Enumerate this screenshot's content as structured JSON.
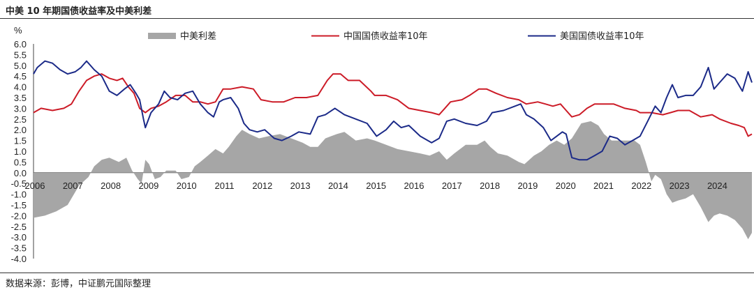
{
  "title": "中美 10 年期国债收益率及中美利差",
  "source": "数据来源：彭博，中证鹏元国际整理",
  "chart_data": {
    "type": "line",
    "yunit": "%",
    "ylim": [
      -4.0,
      6.0
    ],
    "ytick_step": 0.5,
    "yticks": [
      "6.0",
      "5.5",
      "5.0",
      "4.5",
      "4.0",
      "3.5",
      "3.0",
      "2.5",
      "2.0",
      "1.5",
      "1.0",
      "0.5",
      "0.0",
      "-0.5",
      "-1.0",
      "-1.5",
      "-2.0",
      "-2.5",
      "-3.0",
      "-3.5",
      "-4.0"
    ],
    "xlim": [
      2006.0,
      2024.95
    ],
    "xticks": [
      "2006",
      "2007",
      "2008",
      "2009",
      "2010",
      "2011",
      "2012",
      "2013",
      "2014",
      "2015",
      "2016",
      "2017",
      "2018",
      "2019",
      "2020",
      "2021",
      "2022",
      "2023",
      "2024"
    ],
    "legend_position": "top",
    "series": [
      {
        "name": "中美利差",
        "kind": "area",
        "color": "#a6a6a6",
        "points": [
          [
            2006.0,
            -2.1
          ],
          [
            2006.3,
            -2.0
          ],
          [
            2006.6,
            -1.8
          ],
          [
            2006.9,
            -1.5
          ],
          [
            2007.2,
            -0.6
          ],
          [
            2007.45,
            -0.2
          ],
          [
            2007.6,
            0.3
          ],
          [
            2007.8,
            0.6
          ],
          [
            2008.0,
            0.7
          ],
          [
            2008.25,
            0.5
          ],
          [
            2008.45,
            0.7
          ],
          [
            2008.6,
            0.1
          ],
          [
            2008.75,
            -0.3
          ],
          [
            2008.85,
            -0.5
          ],
          [
            2008.95,
            0.6
          ],
          [
            2009.05,
            0.4
          ],
          [
            2009.2,
            -0.3
          ],
          [
            2009.35,
            -0.2
          ],
          [
            2009.5,
            0.1
          ],
          [
            2009.75,
            0.1
          ],
          [
            2009.9,
            -0.3
          ],
          [
            2010.1,
            -0.2
          ],
          [
            2010.25,
            0.3
          ],
          [
            2010.4,
            0.5
          ],
          [
            2010.6,
            0.8
          ],
          [
            2010.8,
            1.1
          ],
          [
            2011.0,
            0.9
          ],
          [
            2011.15,
            1.2
          ],
          [
            2011.35,
            1.7
          ],
          [
            2011.5,
            2.0
          ],
          [
            2011.7,
            1.8
          ],
          [
            2011.95,
            1.6
          ],
          [
            2012.2,
            1.7
          ],
          [
            2012.5,
            1.8
          ],
          [
            2012.8,
            1.6
          ],
          [
            2013.1,
            1.4
          ],
          [
            2013.3,
            1.2
          ],
          [
            2013.5,
            1.2
          ],
          [
            2013.7,
            1.6
          ],
          [
            2013.85,
            1.7
          ],
          [
            2014.0,
            1.8
          ],
          [
            2014.2,
            1.9
          ],
          [
            2014.5,
            1.5
          ],
          [
            2014.8,
            1.6
          ],
          [
            2015.0,
            1.5
          ],
          [
            2015.3,
            1.3
          ],
          [
            2015.6,
            1.1
          ],
          [
            2015.9,
            1.0
          ],
          [
            2016.2,
            0.9
          ],
          [
            2016.45,
            0.8
          ],
          [
            2016.7,
            1.0
          ],
          [
            2016.9,
            0.6
          ],
          [
            2017.1,
            0.9
          ],
          [
            2017.4,
            1.3
          ],
          [
            2017.7,
            1.3
          ],
          [
            2017.9,
            1.5
          ],
          [
            2018.05,
            1.2
          ],
          [
            2018.25,
            0.9
          ],
          [
            2018.5,
            0.8
          ],
          [
            2018.8,
            0.5
          ],
          [
            2018.95,
            0.4
          ],
          [
            2019.2,
            0.8
          ],
          [
            2019.4,
            1.0
          ],
          [
            2019.6,
            1.3
          ],
          [
            2019.8,
            1.5
          ],
          [
            2020.0,
            1.3
          ],
          [
            2020.2,
            1.6
          ],
          [
            2020.45,
            2.3
          ],
          [
            2020.7,
            2.4
          ],
          [
            2020.9,
            2.2
          ],
          [
            2021.05,
            1.8
          ],
          [
            2021.25,
            1.5
          ],
          [
            2021.5,
            1.5
          ],
          [
            2021.7,
            1.5
          ],
          [
            2021.85,
            1.5
          ],
          [
            2022.0,
            1.3
          ],
          [
            2022.15,
            0.5
          ],
          [
            2022.3,
            -0.4
          ],
          [
            2022.4,
            -0.1
          ],
          [
            2022.55,
            -0.3
          ],
          [
            2022.7,
            -1.0
          ],
          [
            2022.85,
            -1.4
          ],
          [
            2023.0,
            -1.3
          ],
          [
            2023.2,
            -1.2
          ],
          [
            2023.4,
            -1.0
          ],
          [
            2023.6,
            -1.6
          ],
          [
            2023.8,
            -2.3
          ],
          [
            2023.95,
            -2.0
          ],
          [
            2024.1,
            -1.9
          ],
          [
            2024.3,
            -2.0
          ],
          [
            2024.5,
            -2.2
          ],
          [
            2024.7,
            -2.6
          ],
          [
            2024.85,
            -3.1
          ],
          [
            2024.95,
            -2.8
          ]
        ]
      },
      {
        "name": "中国国债收益率10年",
        "kind": "line",
        "color": "#cc1b27",
        "points": [
          [
            2006.0,
            2.8
          ],
          [
            2006.2,
            3.0
          ],
          [
            2006.5,
            2.9
          ],
          [
            2006.8,
            3.0
          ],
          [
            2007.0,
            3.2
          ],
          [
            2007.2,
            3.8
          ],
          [
            2007.4,
            4.3
          ],
          [
            2007.6,
            4.5
          ],
          [
            2007.8,
            4.6
          ],
          [
            2008.0,
            4.4
          ],
          [
            2008.2,
            4.3
          ],
          [
            2008.35,
            4.4
          ],
          [
            2008.5,
            4.0
          ],
          [
            2008.65,
            3.7
          ],
          [
            2008.8,
            3.0
          ],
          [
            2008.95,
            2.8
          ],
          [
            2009.1,
            3.0
          ],
          [
            2009.3,
            3.1
          ],
          [
            2009.5,
            3.3
          ],
          [
            2009.75,
            3.6
          ],
          [
            2010.0,
            3.6
          ],
          [
            2010.2,
            3.3
          ],
          [
            2010.4,
            3.3
          ],
          [
            2010.6,
            3.2
          ],
          [
            2010.8,
            3.3
          ],
          [
            2011.0,
            3.9
          ],
          [
            2011.2,
            3.9
          ],
          [
            2011.5,
            4.0
          ],
          [
            2011.8,
            3.9
          ],
          [
            2012.0,
            3.4
          ],
          [
            2012.3,
            3.3
          ],
          [
            2012.6,
            3.3
          ],
          [
            2012.9,
            3.5
          ],
          [
            2013.2,
            3.5
          ],
          [
            2013.5,
            3.6
          ],
          [
            2013.75,
            4.3
          ],
          [
            2013.9,
            4.6
          ],
          [
            2014.1,
            4.6
          ],
          [
            2014.3,
            4.3
          ],
          [
            2014.6,
            4.3
          ],
          [
            2014.9,
            3.8
          ],
          [
            2015.0,
            3.6
          ],
          [
            2015.3,
            3.6
          ],
          [
            2015.6,
            3.4
          ],
          [
            2015.9,
            3.0
          ],
          [
            2016.2,
            2.9
          ],
          [
            2016.5,
            2.8
          ],
          [
            2016.7,
            2.7
          ],
          [
            2016.85,
            3.0
          ],
          [
            2017.0,
            3.3
          ],
          [
            2017.3,
            3.4
          ],
          [
            2017.5,
            3.6
          ],
          [
            2017.75,
            3.9
          ],
          [
            2017.95,
            3.9
          ],
          [
            2018.2,
            3.7
          ],
          [
            2018.5,
            3.5
          ],
          [
            2018.8,
            3.4
          ],
          [
            2019.0,
            3.2
          ],
          [
            2019.3,
            3.3
          ],
          [
            2019.5,
            3.2
          ],
          [
            2019.7,
            3.1
          ],
          [
            2019.9,
            3.2
          ],
          [
            2020.0,
            3.0
          ],
          [
            2020.2,
            2.6
          ],
          [
            2020.4,
            2.7
          ],
          [
            2020.6,
            3.0
          ],
          [
            2020.8,
            3.2
          ],
          [
            2021.0,
            3.2
          ],
          [
            2021.3,
            3.2
          ],
          [
            2021.6,
            3.0
          ],
          [
            2021.9,
            2.9
          ],
          [
            2022.0,
            2.8
          ],
          [
            2022.3,
            2.8
          ],
          [
            2022.6,
            2.7
          ],
          [
            2022.8,
            2.8
          ],
          [
            2023.0,
            2.9
          ],
          [
            2023.3,
            2.9
          ],
          [
            2023.6,
            2.6
          ],
          [
            2023.9,
            2.7
          ],
          [
            2024.1,
            2.5
          ],
          [
            2024.4,
            2.3
          ],
          [
            2024.6,
            2.2
          ],
          [
            2024.75,
            2.1
          ],
          [
            2024.85,
            1.7
          ],
          [
            2024.95,
            1.8
          ]
        ]
      },
      {
        "name": "美国国债收益率10年",
        "kind": "line",
        "color": "#1b2a88",
        "points": [
          [
            2006.0,
            4.6
          ],
          [
            2006.1,
            4.9
          ],
          [
            2006.3,
            5.2
          ],
          [
            2006.5,
            5.1
          ],
          [
            2006.7,
            4.8
          ],
          [
            2006.9,
            4.6
          ],
          [
            2007.1,
            4.7
          ],
          [
            2007.25,
            4.9
          ],
          [
            2007.4,
            5.2
          ],
          [
            2007.6,
            4.8
          ],
          [
            2007.8,
            4.5
          ],
          [
            2008.0,
            3.8
          ],
          [
            2008.2,
            3.6
          ],
          [
            2008.4,
            3.9
          ],
          [
            2008.55,
            4.1
          ],
          [
            2008.7,
            3.7
          ],
          [
            2008.8,
            3.4
          ],
          [
            2008.9,
            2.5
          ],
          [
            2008.95,
            2.1
          ],
          [
            2009.1,
            2.8
          ],
          [
            2009.3,
            3.2
          ],
          [
            2009.45,
            3.8
          ],
          [
            2009.6,
            3.5
          ],
          [
            2009.8,
            3.4
          ],
          [
            2010.0,
            3.7
          ],
          [
            2010.2,
            3.8
          ],
          [
            2010.4,
            3.2
          ],
          [
            2010.6,
            2.8
          ],
          [
            2010.75,
            2.6
          ],
          [
            2010.9,
            3.3
          ],
          [
            2011.0,
            3.4
          ],
          [
            2011.2,
            3.5
          ],
          [
            2011.4,
            3.0
          ],
          [
            2011.55,
            2.3
          ],
          [
            2011.7,
            2.0
          ],
          [
            2011.9,
            1.9
          ],
          [
            2012.1,
            2.0
          ],
          [
            2012.35,
            1.6
          ],
          [
            2012.55,
            1.5
          ],
          [
            2012.8,
            1.7
          ],
          [
            2013.0,
            1.9
          ],
          [
            2013.3,
            1.8
          ],
          [
            2013.5,
            2.6
          ],
          [
            2013.7,
            2.7
          ],
          [
            2013.95,
            3.0
          ],
          [
            2014.2,
            2.7
          ],
          [
            2014.5,
            2.5
          ],
          [
            2014.8,
            2.3
          ],
          [
            2015.05,
            1.7
          ],
          [
            2015.3,
            2.0
          ],
          [
            2015.5,
            2.4
          ],
          [
            2015.7,
            2.1
          ],
          [
            2015.9,
            2.2
          ],
          [
            2016.2,
            1.7
          ],
          [
            2016.5,
            1.4
          ],
          [
            2016.7,
            1.6
          ],
          [
            2016.9,
            2.4
          ],
          [
            2017.1,
            2.5
          ],
          [
            2017.4,
            2.3
          ],
          [
            2017.7,
            2.2
          ],
          [
            2017.95,
            2.4
          ],
          [
            2018.1,
            2.8
          ],
          [
            2018.4,
            2.9
          ],
          [
            2018.7,
            3.1
          ],
          [
            2018.85,
            3.2
          ],
          [
            2019.0,
            2.7
          ],
          [
            2019.2,
            2.5
          ],
          [
            2019.45,
            2.1
          ],
          [
            2019.65,
            1.5
          ],
          [
            2019.8,
            1.7
          ],
          [
            2019.95,
            1.9
          ],
          [
            2020.05,
            1.8
          ],
          [
            2020.2,
            0.7
          ],
          [
            2020.4,
            0.6
          ],
          [
            2020.6,
            0.6
          ],
          [
            2020.8,
            0.8
          ],
          [
            2021.0,
            1.0
          ],
          [
            2021.2,
            1.7
          ],
          [
            2021.4,
            1.6
          ],
          [
            2021.6,
            1.3
          ],
          [
            2021.8,
            1.5
          ],
          [
            2022.0,
            1.7
          ],
          [
            2022.2,
            2.4
          ],
          [
            2022.4,
            3.1
          ],
          [
            2022.55,
            2.8
          ],
          [
            2022.7,
            3.5
          ],
          [
            2022.85,
            4.1
          ],
          [
            2023.0,
            3.5
          ],
          [
            2023.2,
            3.6
          ],
          [
            2023.4,
            3.6
          ],
          [
            2023.6,
            4.0
          ],
          [
            2023.8,
            4.9
          ],
          [
            2023.95,
            3.9
          ],
          [
            2024.1,
            4.2
          ],
          [
            2024.3,
            4.6
          ],
          [
            2024.5,
            4.4
          ],
          [
            2024.7,
            3.8
          ],
          [
            2024.85,
            4.7
          ],
          [
            2024.95,
            4.2
          ]
        ]
      }
    ]
  }
}
